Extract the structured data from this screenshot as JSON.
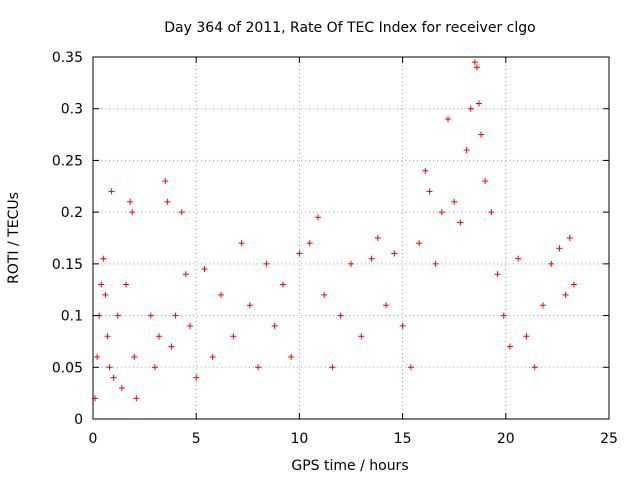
{
  "chart_data": {
    "type": "scatter",
    "title": "Day 364 of 2011, Rate Of TEC Index for receiver clgo",
    "xlabel": "GPS time / hours",
    "ylabel": "ROTI / TECUs",
    "xlim": [
      0,
      25
    ],
    "ylim": [
      0,
      0.35
    ],
    "xticks": [
      0,
      5,
      10,
      15,
      20,
      25
    ],
    "xtick_labels": [
      "0",
      "5",
      "10",
      "15",
      "20",
      "25"
    ],
    "yticks": [
      0,
      0.05,
      0.1,
      0.15,
      0.2,
      0.25,
      0.3,
      0.35
    ],
    "ytick_labels": [
      "0",
      "0.05",
      "0.1",
      "0.15",
      "0.2",
      "0.25",
      "0.3",
      "0.35"
    ],
    "grid": true,
    "legend": "none",
    "marker": "plus",
    "color": "#ff0000",
    "series": [
      {
        "points": [
          [
            0.1,
            0.02
          ],
          [
            0.2,
            0.06
          ],
          [
            0.3,
            0.1
          ],
          [
            0.4,
            0.13
          ],
          [
            0.5,
            0.155
          ],
          [
            0.6,
            0.12
          ],
          [
            0.7,
            0.08
          ],
          [
            0.8,
            0.05
          ],
          [
            0.9,
            0.22
          ],
          [
            1.0,
            0.04
          ],
          [
            1.2,
            0.1
          ],
          [
            1.4,
            0.03
          ],
          [
            1.6,
            0.13
          ],
          [
            1.8,
            0.21
          ],
          [
            1.9,
            0.2
          ],
          [
            2.0,
            0.06
          ],
          [
            2.1,
            0.02
          ],
          [
            2.8,
            0.1
          ],
          [
            3.0,
            0.05
          ],
          [
            3.2,
            0.08
          ],
          [
            3.5,
            0.23
          ],
          [
            3.6,
            0.21
          ],
          [
            3.8,
            0.07
          ],
          [
            4.0,
            0.1
          ],
          [
            4.3,
            0.2
          ],
          [
            4.5,
            0.14
          ],
          [
            4.7,
            0.09
          ],
          [
            5.0,
            0.04
          ],
          [
            5.4,
            0.145
          ],
          [
            5.8,
            0.06
          ],
          [
            6.2,
            0.12
          ],
          [
            6.8,
            0.08
          ],
          [
            7.2,
            0.17
          ],
          [
            7.6,
            0.11
          ],
          [
            8.0,
            0.05
          ],
          [
            8.4,
            0.15
          ],
          [
            8.8,
            0.09
          ],
          [
            9.2,
            0.13
          ],
          [
            9.6,
            0.06
          ],
          [
            10.0,
            0.16
          ],
          [
            10.5,
            0.17
          ],
          [
            10.9,
            0.195
          ],
          [
            11.2,
            0.12
          ],
          [
            11.6,
            0.05
          ],
          [
            12.0,
            0.1
          ],
          [
            12.5,
            0.15
          ],
          [
            13.0,
            0.08
          ],
          [
            13.5,
            0.155
          ],
          [
            13.8,
            0.175
          ],
          [
            14.2,
            0.11
          ],
          [
            14.6,
            0.16
          ],
          [
            15.0,
            0.09
          ],
          [
            15.4,
            0.05
          ],
          [
            15.8,
            0.17
          ],
          [
            16.1,
            0.24
          ],
          [
            16.3,
            0.22
          ],
          [
            16.6,
            0.15
          ],
          [
            16.9,
            0.2
          ],
          [
            17.2,
            0.29
          ],
          [
            17.5,
            0.21
          ],
          [
            17.8,
            0.19
          ],
          [
            18.1,
            0.26
          ],
          [
            18.3,
            0.3
          ],
          [
            18.5,
            0.345
          ],
          [
            18.6,
            0.34
          ],
          [
            18.7,
            0.305
          ],
          [
            18.8,
            0.275
          ],
          [
            19.0,
            0.23
          ],
          [
            19.3,
            0.2
          ],
          [
            19.6,
            0.14
          ],
          [
            19.9,
            0.1
          ],
          [
            20.2,
            0.07
          ],
          [
            20.6,
            0.155
          ],
          [
            21.0,
            0.08
          ],
          [
            21.4,
            0.05
          ],
          [
            21.8,
            0.11
          ],
          [
            22.2,
            0.15
          ],
          [
            22.6,
            0.165
          ],
          [
            22.9,
            0.12
          ],
          [
            23.1,
            0.175
          ],
          [
            23.3,
            0.13
          ]
        ]
      }
    ]
  }
}
